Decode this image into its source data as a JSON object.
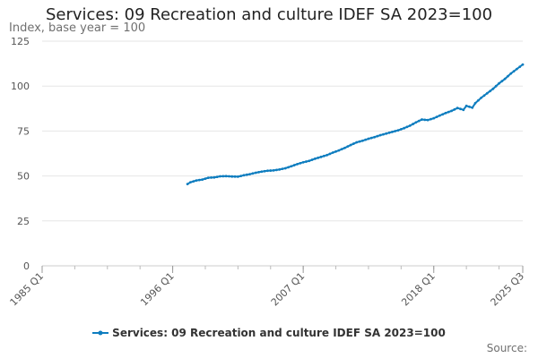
{
  "chart_data": {
    "type": "line",
    "title": "Services: 09 Recreation and culture IDEF SA 2023=100",
    "ylabel": "Index, base year = 100",
    "xlabel": "",
    "ylim": [
      0,
      125
    ],
    "yticks": [
      0,
      25,
      50,
      75,
      100,
      125
    ],
    "xlim": [
      1985.0,
      2025.5
    ],
    "xtick_labels": [
      "1985 Q1",
      "1996 Q1",
      "2007 Q1",
      "2018 Q1",
      "2025 Q3"
    ],
    "xtick_values": [
      1985.0,
      1996.0,
      2007.0,
      2018.0,
      2025.5
    ],
    "legend_position": "bottom",
    "grid": true,
    "series": [
      {
        "name": "Services: 09 Recreation and culture IDEF SA 2023=100",
        "color": "#0e7dbf",
        "points": [
          [
            1997.25,
            45.5
          ],
          [
            1997.5,
            46.5
          ],
          [
            1998.0,
            47.5
          ],
          [
            1998.5,
            48.0
          ],
          [
            1999.0,
            49.0
          ],
          [
            1999.5,
            49.2
          ],
          [
            2000.0,
            49.8
          ],
          [
            2000.5,
            49.9
          ],
          [
            2001.0,
            49.7
          ],
          [
            2001.5,
            49.6
          ],
          [
            2002.0,
            50.4
          ],
          [
            2002.5,
            51.0
          ],
          [
            2003.0,
            51.8
          ],
          [
            2003.5,
            52.4
          ],
          [
            2004.0,
            52.9
          ],
          [
            2004.5,
            53.1
          ],
          [
            2005.0,
            53.6
          ],
          [
            2005.5,
            54.3
          ],
          [
            2006.0,
            55.4
          ],
          [
            2006.5,
            56.6
          ],
          [
            2007.0,
            57.6
          ],
          [
            2007.5,
            58.4
          ],
          [
            2008.0,
            59.6
          ],
          [
            2008.5,
            60.6
          ],
          [
            2009.0,
            61.6
          ],
          [
            2009.5,
            63.0
          ],
          [
            2010.0,
            64.2
          ],
          [
            2010.5,
            65.6
          ],
          [
            2011.0,
            67.2
          ],
          [
            2011.5,
            68.7
          ],
          [
            2012.0,
            69.6
          ],
          [
            2012.5,
            70.7
          ],
          [
            2013.0,
            71.6
          ],
          [
            2013.5,
            72.7
          ],
          [
            2014.0,
            73.6
          ],
          [
            2014.5,
            74.5
          ],
          [
            2015.0,
            75.4
          ],
          [
            2015.5,
            76.6
          ],
          [
            2016.0,
            78.0
          ],
          [
            2016.5,
            79.8
          ],
          [
            2017.0,
            81.4
          ],
          [
            2017.5,
            81.1
          ],
          [
            2018.0,
            82.1
          ],
          [
            2018.5,
            83.6
          ],
          [
            2019.0,
            85.0
          ],
          [
            2019.5,
            86.2
          ],
          [
            2020.0,
            87.8
          ],
          [
            2020.5,
            86.8
          ],
          [
            2020.75,
            89.0
          ],
          [
            2021.25,
            88.0
          ],
          [
            2021.5,
            90.5
          ],
          [
            2022.0,
            93.5
          ],
          [
            2022.5,
            96.0
          ],
          [
            2023.0,
            98.5
          ],
          [
            2023.5,
            101.5
          ],
          [
            2024.0,
            104.0
          ],
          [
            2024.5,
            107.0
          ],
          [
            2025.0,
            109.5
          ],
          [
            2025.5,
            112.0
          ]
        ]
      }
    ],
    "source_label": "Source:"
  }
}
